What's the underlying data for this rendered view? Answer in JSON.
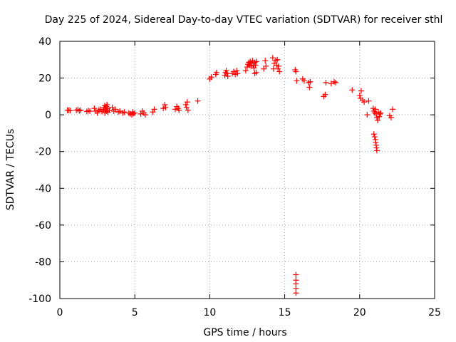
{
  "chart_data": {
    "type": "scatter",
    "title": "Day 225 of 2024, Sidereal Day-to-day VTEC variation (SDTVAR) for receiver sthl",
    "xlabel": "GPS time / hours",
    "ylabel": "SDTVAR / TECUs",
    "xlim": [
      0,
      25
    ],
    "ylim": [
      -100,
      40
    ],
    "xticks": [
      0,
      5,
      10,
      15,
      20,
      25
    ],
    "yticks": [
      -100,
      -80,
      -60,
      -40,
      -20,
      0,
      20,
      40
    ],
    "grid": true,
    "marker": "plus",
    "color": "#ff0000",
    "series": [
      {
        "name": "SDTVAR",
        "points": [
          [
            0.5,
            2.5
          ],
          [
            0.6,
            2.5
          ],
          [
            0.7,
            2.3
          ],
          [
            1.1,
            2.5
          ],
          [
            1.2,
            2.8
          ],
          [
            1.3,
            2.2
          ],
          [
            1.4,
            2.5
          ],
          [
            1.8,
            1.8
          ],
          [
            1.9,
            2.3
          ],
          [
            2.0,
            2.0
          ],
          [
            2.3,
            3.5
          ],
          [
            2.4,
            2.0
          ],
          [
            2.5,
            1.0
          ],
          [
            2.6,
            2.5
          ],
          [
            2.7,
            3.0
          ],
          [
            2.8,
            1.8
          ],
          [
            2.9,
            2.5
          ],
          [
            2.95,
            4.0
          ],
          [
            3.0,
            5.0
          ],
          [
            3.0,
            1.0
          ],
          [
            3.05,
            3.0
          ],
          [
            3.1,
            4.5
          ],
          [
            3.1,
            2.0
          ],
          [
            3.15,
            5.5
          ],
          [
            3.2,
            3.5
          ],
          [
            3.2,
            1.5
          ],
          [
            3.3,
            2.5
          ],
          [
            3.5,
            4.0
          ],
          [
            3.6,
            2.0
          ],
          [
            3.7,
            3.0
          ],
          [
            3.9,
            1.5
          ],
          [
            4.0,
            2.0
          ],
          [
            4.2,
            1.0
          ],
          [
            4.3,
            1.5
          ],
          [
            4.6,
            1.0
          ],
          [
            4.7,
            0.5
          ],
          [
            4.8,
            0.0
          ],
          [
            4.85,
            1.5
          ],
          [
            4.9,
            0.5
          ],
          [
            5.0,
            1.0
          ],
          [
            5.4,
            0.5
          ],
          [
            5.5,
            2.0
          ],
          [
            5.6,
            1.0
          ],
          [
            5.7,
            0.0
          ],
          [
            6.2,
            1.5
          ],
          [
            6.3,
            3.0
          ],
          [
            6.9,
            3.5
          ],
          [
            7.0,
            5.5
          ],
          [
            7.05,
            4.0
          ],
          [
            7.7,
            3.0
          ],
          [
            7.8,
            4.5
          ],
          [
            7.9,
            3.5
          ],
          [
            7.95,
            2.5
          ],
          [
            8.4,
            5.5
          ],
          [
            8.45,
            4.0
          ],
          [
            8.5,
            7.0
          ],
          [
            8.55,
            2.5
          ],
          [
            9.2,
            7.5
          ],
          [
            10.0,
            19.5
          ],
          [
            10.1,
            20.5
          ],
          [
            10.4,
            22.0
          ],
          [
            10.45,
            23.0
          ],
          [
            11.0,
            21.5
          ],
          [
            11.05,
            23.0
          ],
          [
            11.1,
            24.0
          ],
          [
            11.15,
            22.5
          ],
          [
            11.2,
            21.0
          ],
          [
            11.5,
            22.5
          ],
          [
            11.6,
            23.5
          ],
          [
            11.7,
            22.0
          ],
          [
            11.8,
            24.0
          ],
          [
            11.85,
            22.5
          ],
          [
            12.4,
            24.0
          ],
          [
            12.5,
            26.0
          ],
          [
            12.55,
            27.5
          ],
          [
            12.6,
            28.5
          ],
          [
            12.65,
            27.0
          ],
          [
            12.7,
            29.0
          ],
          [
            12.75,
            26.5
          ],
          [
            12.8,
            28.0
          ],
          [
            12.85,
            29.5
          ],
          [
            12.9,
            27.0
          ],
          [
            12.95,
            25.5
          ],
          [
            13.0,
            28.5
          ],
          [
            13.05,
            27.0
          ],
          [
            13.1,
            29.0
          ],
          [
            13.0,
            22.5
          ],
          [
            13.1,
            23.0
          ],
          [
            13.6,
            25.0
          ],
          [
            13.7,
            29.5
          ],
          [
            13.75,
            26.5
          ],
          [
            14.2,
            31.0
          ],
          [
            14.25,
            25.0
          ],
          [
            14.3,
            28.0
          ],
          [
            14.4,
            29.5
          ],
          [
            14.45,
            27.0
          ],
          [
            14.5,
            30.0
          ],
          [
            14.55,
            25.0
          ],
          [
            14.6,
            26.5
          ],
          [
            14.65,
            23.5
          ],
          [
            15.7,
            24.5
          ],
          [
            15.75,
            23.5
          ],
          [
            15.8,
            18.5
          ],
          [
            16.2,
            19.5
          ],
          [
            16.3,
            18.5
          ],
          [
            16.6,
            17.5
          ],
          [
            16.65,
            15.0
          ],
          [
            16.7,
            18.0
          ],
          [
            17.6,
            10.0
          ],
          [
            17.7,
            11.0
          ],
          [
            17.75,
            17.5
          ],
          [
            18.1,
            17.0
          ],
          [
            18.3,
            18.0
          ],
          [
            18.4,
            17.5
          ],
          [
            19.5,
            13.5
          ],
          [
            20.0,
            10.5
          ],
          [
            20.05,
            9.0
          ],
          [
            20.1,
            13.0
          ],
          [
            20.2,
            8.0
          ],
          [
            20.3,
            7.0
          ],
          [
            20.5,
            0.0
          ],
          [
            20.6,
            7.5
          ],
          [
            20.9,
            3.5
          ],
          [
            20.95,
            2.0
          ],
          [
            21.0,
            1.0
          ],
          [
            21.05,
            3.0
          ],
          [
            21.1,
            0.5
          ],
          [
            21.15,
            -1.5
          ],
          [
            21.2,
            -3.0
          ],
          [
            21.25,
            1.5
          ],
          [
            21.3,
            -1.0
          ],
          [
            21.35,
            0.5
          ],
          [
            21.4,
            1.0
          ],
          [
            20.95,
            -10.5
          ],
          [
            21.0,
            -12.0
          ],
          [
            21.05,
            -13.5
          ],
          [
            21.07,
            -15.0
          ],
          [
            21.1,
            -16.5
          ],
          [
            21.12,
            -18.0
          ],
          [
            21.15,
            -19.5
          ],
          [
            22.0,
            -0.5
          ],
          [
            22.1,
            -1.5
          ],
          [
            22.2,
            3.0
          ],
          [
            15.75,
            -87.0
          ],
          [
            15.75,
            -90.0
          ],
          [
            15.75,
            -92.0
          ],
          [
            15.75,
            -94.5
          ],
          [
            15.75,
            -97.0
          ]
        ]
      }
    ]
  }
}
